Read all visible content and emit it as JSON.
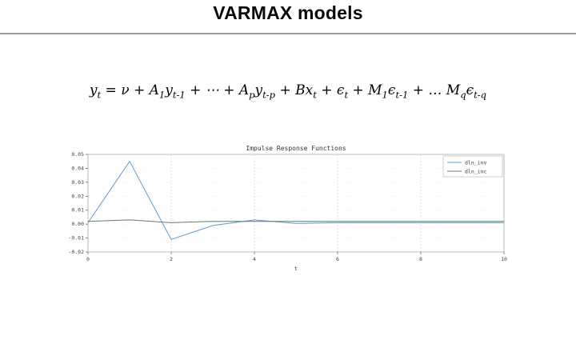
{
  "slide": {
    "title": "VARMAX models",
    "formula": "y_{t} = ν + A_{1}y_{t-1} + ⋯ + A_{p}y_{t-p} + Bx_{t} + ϵ_{t} + M_{1}ϵ_{t-1} + … M_{q}ϵ_{t-q}"
  },
  "chart_data": {
    "type": "line",
    "title": "Impulse Response Functions",
    "xlabel": "t",
    "ylabel": "",
    "xlim": [
      0,
      10
    ],
    "ylim": [
      -0.02,
      0.05
    ],
    "xticks": [
      0,
      2,
      4,
      6,
      8,
      10
    ],
    "yticks": [
      -0.02,
      -0.01,
      0.0,
      0.01,
      0.02,
      0.03,
      0.04,
      0.05
    ],
    "grid": true,
    "legend_position": "upper right",
    "x": [
      0,
      1,
      2,
      3,
      4,
      5,
      6,
      7,
      8,
      9,
      10
    ],
    "series": [
      {
        "name": "dln_inv",
        "color": "#5b9bd1",
        "values": [
          0.001,
          0.045,
          -0.011,
          -0.001,
          0.003,
          0.0005,
          0.001,
          0.001,
          0.001,
          0.001,
          0.001
        ]
      },
      {
        "name": "dln_inc",
        "color": "#5f7d67",
        "values": [
          0.002,
          0.003,
          0.001,
          0.002,
          0.002,
          0.002,
          0.002,
          0.002,
          0.002,
          0.002,
          0.002
        ]
      }
    ]
  }
}
